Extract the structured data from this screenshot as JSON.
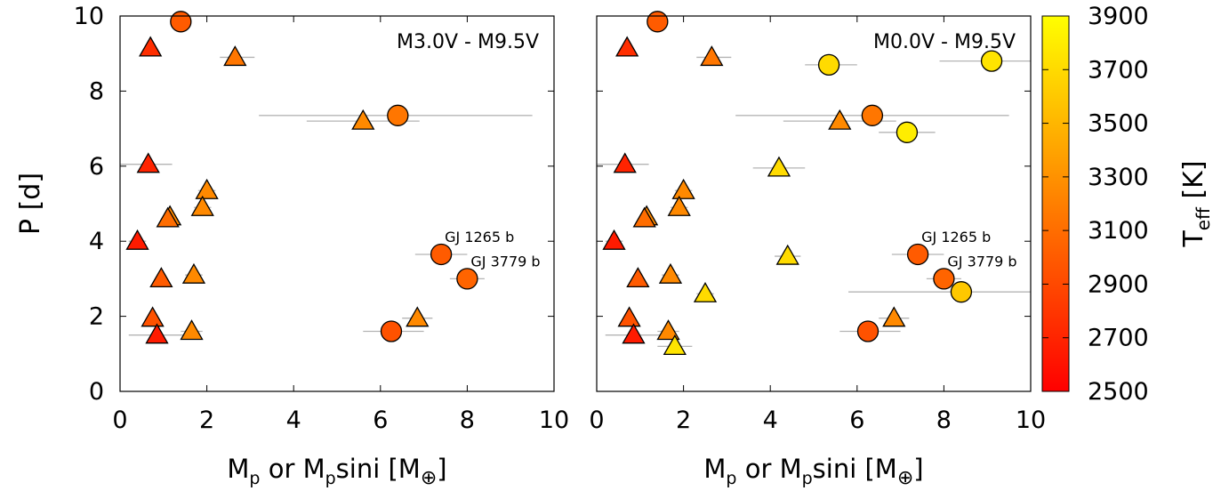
{
  "chart_data": [
    {
      "type": "scatter",
      "panel_label": "M3.0V - M9.5V",
      "xlabel": "M_p or M_psini [M_⊕]",
      "ylabel": "P [d]",
      "xlim": [
        0,
        10
      ],
      "ylim": [
        0,
        10
      ],
      "x_ticks": [
        0,
        2,
        4,
        6,
        8,
        10
      ],
      "y_ticks": [
        0,
        2,
        4,
        6,
        8,
        10
      ],
      "grid": false,
      "marker_legend": {
        "circle": "",
        "triangle": ""
      },
      "points": [
        {
          "x": 1.4,
          "y": 9.85,
          "marker": "circle",
          "teff": 3000
        },
        {
          "x": 0.7,
          "y": 9.15,
          "marker": "triangle",
          "teff": 2750,
          "xerr": [
            0.6,
            0.8
          ]
        },
        {
          "x": 2.65,
          "y": 8.9,
          "marker": "triangle",
          "teff": 3150,
          "xerr": [
            2.3,
            3.1
          ]
        },
        {
          "x": 6.4,
          "y": 7.35,
          "marker": "circle",
          "teff": 3150,
          "xerr": [
            3.2,
            9.5
          ]
        },
        {
          "x": 5.6,
          "y": 7.2,
          "marker": "triangle",
          "teff": 3250,
          "xerr": [
            4.3,
            6.9
          ]
        },
        {
          "x": 0.65,
          "y": 6.05,
          "marker": "triangle",
          "teff": 2700,
          "xerr": [
            0.0,
            1.2
          ]
        },
        {
          "x": 2.0,
          "y": 5.35,
          "marker": "triangle",
          "teff": 3250,
          "xerr": [
            1.8,
            2.2
          ]
        },
        {
          "x": 1.9,
          "y": 4.9,
          "marker": "triangle",
          "teff": 3250,
          "xerr": [
            1.7,
            2.1
          ]
        },
        {
          "x": 1.15,
          "y": 4.65,
          "marker": "triangle",
          "teff": 3250
        },
        {
          "x": 1.1,
          "y": 4.6,
          "marker": "triangle",
          "teff": 3100
        },
        {
          "x": 0.4,
          "y": 4.0,
          "marker": "triangle",
          "teff": 2650,
          "xerr": [
            0.2,
            0.6
          ]
        },
        {
          "x": 7.4,
          "y": 3.65,
          "marker": "circle",
          "teff": 3000,
          "xerr": [
            6.8,
            8.0
          ]
        },
        {
          "x": 1.7,
          "y": 3.1,
          "marker": "triangle",
          "teff": 3250,
          "xerr": [
            1.5,
            1.9
          ]
        },
        {
          "x": 0.95,
          "y": 3.0,
          "marker": "triangle",
          "teff": 3000
        },
        {
          "x": 8.0,
          "y": 3.0,
          "marker": "circle",
          "teff": 3050,
          "xerr": [
            7.6,
            8.4
          ]
        },
        {
          "x": 0.75,
          "y": 1.95,
          "marker": "triangle",
          "teff": 2950
        },
        {
          "x": 6.85,
          "y": 1.95,
          "marker": "triangle",
          "teff": 3250,
          "xerr": [
            6.5,
            7.2
          ]
        },
        {
          "x": 1.65,
          "y": 1.6,
          "marker": "triangle",
          "teff": 3250,
          "xerr": [
            1.4,
            1.9
          ]
        },
        {
          "x": 6.25,
          "y": 1.6,
          "marker": "circle",
          "teff": 2950,
          "xerr": [
            5.6,
            7.0
          ]
        },
        {
          "x": 0.85,
          "y": 1.5,
          "marker": "triangle",
          "teff": 2650,
          "xerr": [
            0.2,
            1.5
          ]
        }
      ],
      "annotations": [
        {
          "text": "GJ 1265 b",
          "x": 7.4,
          "y": 3.65
        },
        {
          "text": "GJ 3779 b",
          "x": 8.0,
          "y": 3.0
        }
      ]
    },
    {
      "type": "scatter",
      "panel_label": "M0.0V - M9.5V",
      "xlabel": "M_p or M_psini [M_⊕]",
      "xlim": [
        0,
        10
      ],
      "ylim": [
        0,
        10
      ],
      "x_ticks": [
        0,
        2,
        4,
        6,
        8,
        10
      ],
      "grid": false,
      "points": [
        {
          "x": 1.4,
          "y": 9.85,
          "marker": "circle",
          "teff": 3000
        },
        {
          "x": 0.7,
          "y": 9.15,
          "marker": "triangle",
          "teff": 2750,
          "xerr": [
            0.6,
            0.8
          ]
        },
        {
          "x": 2.65,
          "y": 8.9,
          "marker": "triangle",
          "teff": 3150,
          "xerr": [
            2.3,
            3.1
          ]
        },
        {
          "x": 9.1,
          "y": 8.8,
          "marker": "circle",
          "teff": 3750,
          "xerr": [
            7.9,
            10.0
          ]
        },
        {
          "x": 5.35,
          "y": 8.7,
          "marker": "circle",
          "teff": 3700,
          "xerr": [
            4.8,
            6.0
          ]
        },
        {
          "x": 6.35,
          "y": 7.35,
          "marker": "circle",
          "teff": 3150,
          "xerr": [
            3.2,
            9.5
          ]
        },
        {
          "x": 5.6,
          "y": 7.2,
          "marker": "triangle",
          "teff": 3250,
          "xerr": [
            4.3,
            6.9
          ]
        },
        {
          "x": 7.15,
          "y": 6.9,
          "marker": "circle",
          "teff": 3800,
          "xerr": [
            6.5,
            7.8
          ]
        },
        {
          "x": 0.65,
          "y": 6.05,
          "marker": "triangle",
          "teff": 2700,
          "xerr": [
            0.0,
            1.2
          ]
        },
        {
          "x": 4.2,
          "y": 5.95,
          "marker": "triangle",
          "teff": 3700,
          "xerr": [
            3.6,
            4.8
          ]
        },
        {
          "x": 2.0,
          "y": 5.35,
          "marker": "triangle",
          "teff": 3250,
          "xerr": [
            1.8,
            2.2
          ]
        },
        {
          "x": 1.9,
          "y": 4.9,
          "marker": "triangle",
          "teff": 3250,
          "xerr": [
            1.7,
            2.1
          ]
        },
        {
          "x": 1.15,
          "y": 4.65,
          "marker": "triangle",
          "teff": 3250
        },
        {
          "x": 1.1,
          "y": 4.6,
          "marker": "triangle",
          "teff": 3100
        },
        {
          "x": 0.4,
          "y": 4.0,
          "marker": "triangle",
          "teff": 2650,
          "xerr": [
            0.2,
            0.6
          ]
        },
        {
          "x": 7.4,
          "y": 3.65,
          "marker": "circle",
          "teff": 3000,
          "xerr": [
            6.8,
            8.0
          ]
        },
        {
          "x": 4.4,
          "y": 3.6,
          "marker": "triangle",
          "teff": 3700,
          "xerr": [
            4.1,
            4.7
          ]
        },
        {
          "x": 1.7,
          "y": 3.1,
          "marker": "triangle",
          "teff": 3250,
          "xerr": [
            1.5,
            1.9
          ]
        },
        {
          "x": 0.95,
          "y": 3.0,
          "marker": "triangle",
          "teff": 3000
        },
        {
          "x": 8.0,
          "y": 3.0,
          "marker": "circle",
          "teff": 3050,
          "xerr": [
            7.6,
            8.4
          ]
        },
        {
          "x": 8.4,
          "y": 2.65,
          "marker": "circle",
          "teff": 3600,
          "xerr": [
            5.8,
            10.0
          ]
        },
        {
          "x": 2.5,
          "y": 2.6,
          "marker": "triangle",
          "teff": 3700,
          "xerr": [
            2.3,
            2.7
          ]
        },
        {
          "x": 0.75,
          "y": 1.95,
          "marker": "triangle",
          "teff": 2950
        },
        {
          "x": 6.85,
          "y": 1.95,
          "marker": "triangle",
          "teff": 3250,
          "xerr": [
            6.5,
            7.2
          ]
        },
        {
          "x": 1.65,
          "y": 1.6,
          "marker": "triangle",
          "teff": 3250,
          "xerr": [
            1.4,
            1.9
          ]
        },
        {
          "x": 6.25,
          "y": 1.6,
          "marker": "circle",
          "teff": 2950,
          "xerr": [
            5.6,
            7.0
          ]
        },
        {
          "x": 0.85,
          "y": 1.5,
          "marker": "triangle",
          "teff": 2650,
          "xerr": [
            0.2,
            1.5
          ]
        },
        {
          "x": 1.8,
          "y": 1.2,
          "marker": "triangle",
          "teff": 3750,
          "xerr": [
            1.4,
            2.2
          ]
        }
      ],
      "annotations": [
        {
          "text": "GJ 1265 b",
          "x": 7.4,
          "y": 3.65
        },
        {
          "text": "GJ 3779 b",
          "x": 8.0,
          "y": 3.0
        }
      ]
    }
  ],
  "colorbar": {
    "label": "T_eff [K]",
    "range": [
      2500,
      3900
    ],
    "ticks": [
      2500,
      2700,
      2900,
      3100,
      3300,
      3500,
      3700,
      3900
    ],
    "colors": [
      "#ff0000",
      "#ffff00"
    ]
  },
  "colors": {
    "errorbar": "#b4b4b4",
    "marker_edge": "#000000"
  }
}
